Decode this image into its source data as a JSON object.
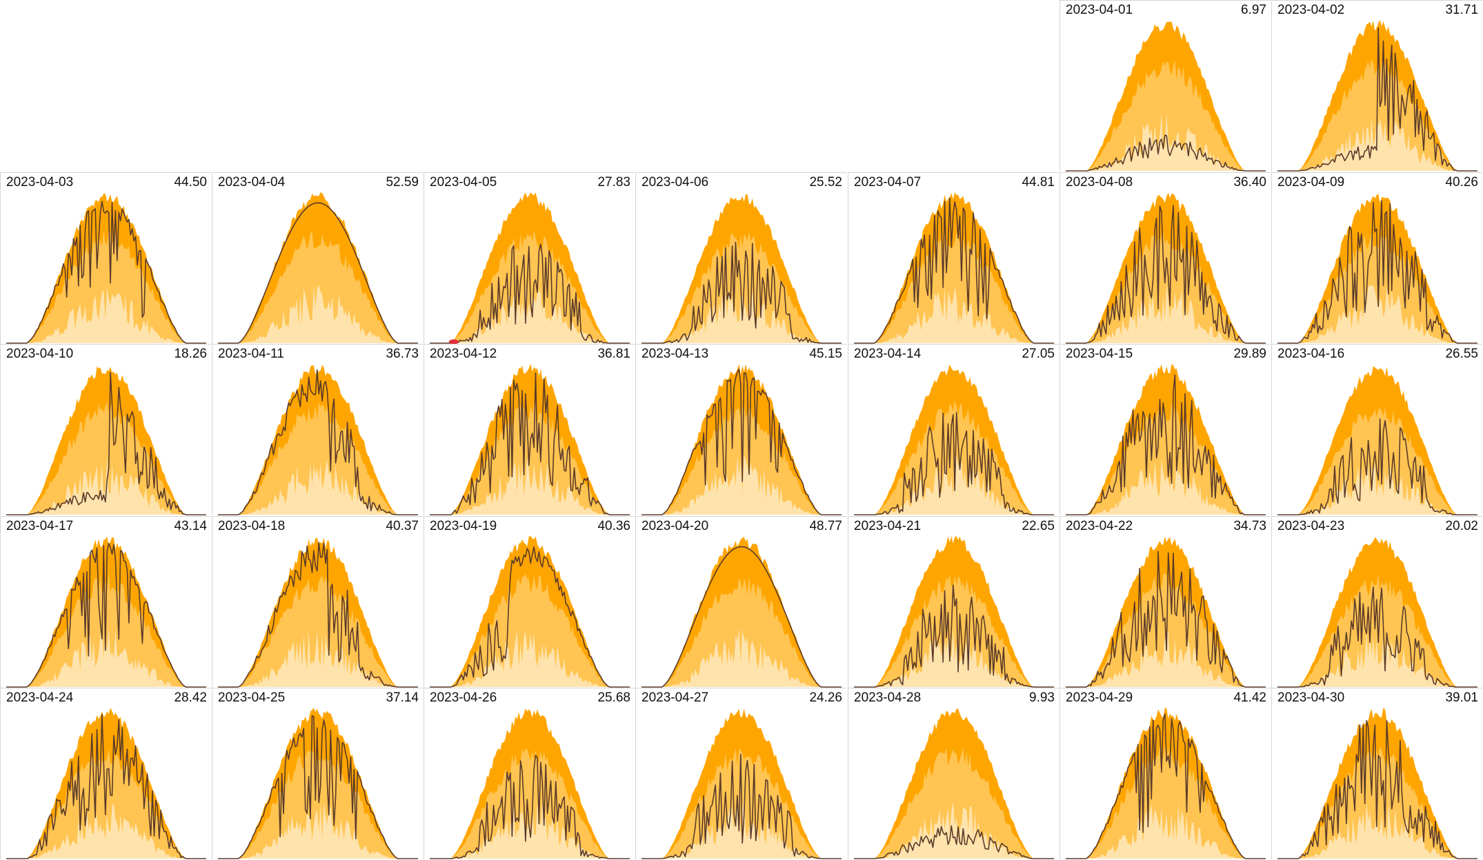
{
  "chart_data": {
    "type": "area",
    "layout": "calendar-small-multiples",
    "month": "2023-04",
    "colors": {
      "band_outer": "#ffa500",
      "band_mid": "#ffc451",
      "band_inner": "#ffe3ad",
      "actual_line": "#5a3a2a",
      "marker": "#e0303a"
    },
    "days": [
      {
        "date": "2023-04-01",
        "total": "6.97",
        "profile": "lowcloud",
        "seed": 1
      },
      {
        "date": "2023-04-02",
        "total": "31.71",
        "profile": "latespiky",
        "seed": 2
      },
      {
        "date": "2023-04-03",
        "total": "44.50",
        "profile": "clearspiky",
        "seed": 3
      },
      {
        "date": "2023-04-04",
        "total": "52.59",
        "profile": "clear",
        "seed": 4
      },
      {
        "date": "2023-04-05",
        "total": "27.83",
        "profile": "midspiky",
        "seed": 5,
        "marker": true
      },
      {
        "date": "2023-04-06",
        "total": "25.52",
        "profile": "midspiky",
        "seed": 6
      },
      {
        "date": "2023-04-07",
        "total": "44.81",
        "profile": "clearspiky",
        "seed": 7
      },
      {
        "date": "2023-04-08",
        "total": "36.40",
        "profile": "spiky",
        "seed": 8
      },
      {
        "date": "2023-04-09",
        "total": "40.26",
        "profile": "spiky",
        "seed": 9
      },
      {
        "date": "2023-04-10",
        "total": "18.26",
        "profile": "latespiky",
        "seed": 10
      },
      {
        "date": "2023-04-11",
        "total": "36.73",
        "profile": "earlyclear",
        "seed": 11
      },
      {
        "date": "2023-04-12",
        "total": "36.81",
        "profile": "spiky",
        "seed": 12
      },
      {
        "date": "2023-04-13",
        "total": "45.15",
        "profile": "clearspiky",
        "seed": 13
      },
      {
        "date": "2023-04-14",
        "total": "27.05",
        "profile": "midspiky",
        "seed": 14
      },
      {
        "date": "2023-04-15",
        "total": "29.89",
        "profile": "spiky",
        "seed": 15
      },
      {
        "date": "2023-04-16",
        "total": "26.55",
        "profile": "midspiky",
        "seed": 16
      },
      {
        "date": "2023-04-17",
        "total": "43.14",
        "profile": "clearspiky",
        "seed": 17
      },
      {
        "date": "2023-04-18",
        "total": "40.37",
        "profile": "earlyclear",
        "seed": 18
      },
      {
        "date": "2023-04-19",
        "total": "40.36",
        "profile": "lateclear",
        "seed": 19
      },
      {
        "date": "2023-04-20",
        "total": "48.77",
        "profile": "clear",
        "seed": 20
      },
      {
        "date": "2023-04-21",
        "total": "22.65",
        "profile": "midspiky",
        "seed": 21
      },
      {
        "date": "2023-04-22",
        "total": "34.73",
        "profile": "spiky",
        "seed": 22
      },
      {
        "date": "2023-04-23",
        "total": "20.02",
        "profile": "midspiky",
        "seed": 23
      },
      {
        "date": "2023-04-24",
        "total": "28.42",
        "profile": "spiky",
        "seed": 24
      },
      {
        "date": "2023-04-25",
        "total": "37.14",
        "profile": "clearspiky",
        "seed": 25
      },
      {
        "date": "2023-04-26",
        "total": "25.68",
        "profile": "midspiky",
        "seed": 26
      },
      {
        "date": "2023-04-27",
        "total": "24.26",
        "profile": "midspiky",
        "seed": 27
      },
      {
        "date": "2023-04-28",
        "total": "9.93",
        "profile": "lowcloud",
        "seed": 28
      },
      {
        "date": "2023-04-29",
        "total": "41.42",
        "profile": "clearspiky",
        "seed": 29
      },
      {
        "date": "2023-04-30",
        "total": "39.01",
        "profile": "spiky",
        "seed": 30
      }
    ]
  }
}
